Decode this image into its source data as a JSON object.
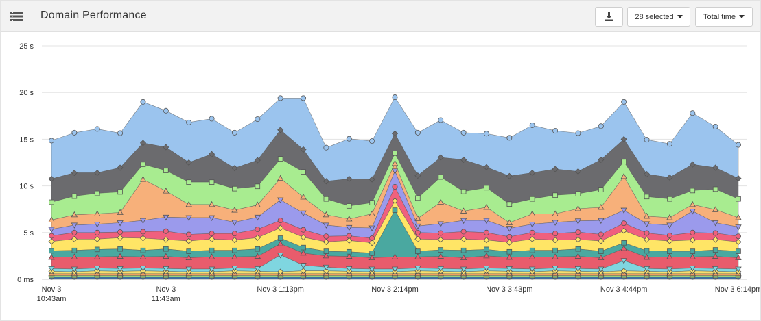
{
  "header": {
    "title": "Domain Performance",
    "menu_icon": "list-icon",
    "download_icon": "download-icon",
    "selected_label": "28 selected",
    "metric_label": "Total time"
  },
  "chart_data": {
    "type": "area",
    "stacked": true,
    "grid": true,
    "legend": "none",
    "ylim": [
      0,
      25
    ],
    "y_ticks": [
      {
        "value": 0,
        "label": "0 ms"
      },
      {
        "value": 5,
        "label": "5 s"
      },
      {
        "value": 10,
        "label": "10 s"
      },
      {
        "value": 15,
        "label": "15 s"
      },
      {
        "value": 20,
        "label": "20 s"
      },
      {
        "value": 25,
        "label": "25 s"
      }
    ],
    "x_ticks": [
      {
        "index": 0,
        "lines": [
          "Nov 3",
          "10:43am"
        ]
      },
      {
        "index": 5,
        "lines": [
          "Nov 3",
          "11:43am"
        ]
      },
      {
        "index": 10,
        "lines": [
          "Nov 3 1:13pm"
        ]
      },
      {
        "index": 15,
        "lines": [
          "Nov 3 2:14pm"
        ]
      },
      {
        "index": 20,
        "lines": [
          "Nov 3 3:43pm"
        ]
      },
      {
        "index": 25,
        "lines": [
          "Nov 3 4:44pm"
        ]
      },
      {
        "index": 30,
        "lines": [
          "Nov 3 6:14pm"
        ]
      }
    ],
    "point_count": 31,
    "bands": [
      {
        "color": "#3d6fa0",
        "marker": "circle",
        "values": [
          0.25,
          0.25,
          0.25,
          0.25,
          0.25,
          0.25,
          0.25,
          0.25,
          0.25,
          0.25,
          0.25,
          0.25,
          0.25,
          0.25,
          0.25,
          0.25,
          0.25,
          0.25,
          0.25,
          0.25,
          0.25,
          0.25,
          0.25,
          0.25,
          0.25,
          0.25,
          0.25,
          0.25,
          0.25,
          0.25,
          0.25
        ]
      },
      {
        "color": "#9ad47c",
        "marker": "square",
        "values": [
          0.15,
          0.15,
          0.15,
          0.15,
          0.15,
          0.15,
          0.15,
          0.15,
          0.15,
          0.15,
          0.15,
          0.15,
          0.15,
          0.15,
          0.15,
          0.15,
          0.15,
          0.15,
          0.15,
          0.15,
          0.15,
          0.15,
          0.15,
          0.15,
          0.15,
          0.15,
          0.15,
          0.15,
          0.15,
          0.15,
          0.15
        ]
      },
      {
        "color": "#f0a060",
        "marker": "triangle",
        "values": [
          0.2,
          0.2,
          0.2,
          0.2,
          0.2,
          0.2,
          0.2,
          0.2,
          0.2,
          0.2,
          0.2,
          0.2,
          0.2,
          0.2,
          0.2,
          0.2,
          0.2,
          0.2,
          0.2,
          0.2,
          0.2,
          0.2,
          0.2,
          0.2,
          0.2,
          0.2,
          0.2,
          0.2,
          0.2,
          0.2,
          0.2
        ]
      },
      {
        "color": "#f5e06e",
        "marker": "diamond",
        "values": [
          0.25,
          0.2,
          0.3,
          0.25,
          0.3,
          0.25,
          0.2,
          0.2,
          0.3,
          0.25,
          0.2,
          0.3,
          0.3,
          0.25,
          0.2,
          0.2,
          0.3,
          0.25,
          0.2,
          0.3,
          0.25,
          0.2,
          0.3,
          0.25,
          0.2,
          0.3,
          0.25,
          0.2,
          0.3,
          0.25,
          0.2
        ]
      },
      {
        "color": "#7fd6e0",
        "marker": "triangle-down",
        "values": [
          0.3,
          0.3,
          0.3,
          0.3,
          0.3,
          0.3,
          0.3,
          0.3,
          0.3,
          0.3,
          1.8,
          0.6,
          0.4,
          0.3,
          0.3,
          0.3,
          0.3,
          0.3,
          0.3,
          0.3,
          0.3,
          0.3,
          0.3,
          0.3,
          0.3,
          1.1,
          0.3,
          0.3,
          0.3,
          0.3,
          0.3
        ]
      },
      {
        "color": "#e85c6c",
        "marker": "triangle",
        "values": [
          1.2,
          1.3,
          1.2,
          1.3,
          1.2,
          1.3,
          1.2,
          1.3,
          1.2,
          1.3,
          1.2,
          1.3,
          1.2,
          1.3,
          1.2,
          1.3,
          1.2,
          1.3,
          1.2,
          1.3,
          1.2,
          1.3,
          1.2,
          1.3,
          1.2,
          1.3,
          1.2,
          1.3,
          1.2,
          1.3,
          1.2
        ]
      },
      {
        "color": "#4aa8a0",
        "marker": "square",
        "values": [
          0.7,
          0.7,
          0.8,
          0.8,
          0.7,
          0.8,
          0.7,
          0.7,
          0.7,
          0.8,
          0.6,
          0.6,
          0.5,
          0.5,
          0.5,
          5.0,
          0.6,
          0.7,
          0.8,
          0.7,
          0.6,
          0.7,
          0.7,
          0.8,
          0.7,
          0.6,
          0.7,
          0.6,
          0.6,
          0.7,
          0.7
        ]
      },
      {
        "color": "#ffe566",
        "marker": "diamond",
        "values": [
          1.0,
          1.2,
          1.1,
          1.2,
          1.3,
          1.0,
          1.1,
          1.2,
          1.1,
          1.2,
          1.1,
          1.1,
          1.0,
          1.2,
          1.1,
          1.0,
          1.3,
          1.1,
          1.2,
          1.0,
          1.0,
          1.2,
          1.1,
          1.0,
          1.1,
          1.3,
          1.2,
          1.1,
          1.2,
          1.1,
          1.0
        ]
      },
      {
        "color": "#f0607e",
        "marker": "circle",
        "values": [
          0.6,
          0.7,
          0.7,
          0.6,
          0.7,
          0.9,
          0.7,
          0.6,
          0.7,
          0.9,
          0.8,
          0.8,
          0.6,
          0.5,
          0.5,
          1.5,
          0.7,
          0.7,
          0.8,
          0.8,
          0.6,
          0.7,
          0.7,
          0.8,
          0.7,
          0.8,
          0.7,
          0.6,
          0.8,
          0.7,
          0.6
        ]
      },
      {
        "color": "#9b9aec",
        "marker": "triangle-down",
        "values": [
          0.7,
          0.8,
          0.9,
          1.0,
          1.2,
          1.5,
          1.8,
          1.7,
          1.2,
          1.3,
          2.2,
          1.8,
          1.2,
          0.9,
          1.1,
          1.7,
          0.7,
          1.0,
          1.2,
          1.3,
          0.9,
          0.9,
          1.2,
          1.2,
          1.5,
          1.4,
          1.0,
          1.1,
          2.3,
          1.1,
          1.0
        ]
      },
      {
        "color": "#f7b07a",
        "marker": "triangle",
        "values": [
          1.0,
          1.1,
          1.1,
          1.1,
          4.4,
          2.8,
          1.4,
          1.4,
          1.3,
          1.3,
          2.3,
          1.7,
          1.1,
          0.9,
          1.5,
          0.8,
          0.8,
          2.3,
          1.0,
          1.4,
          0.6,
          1.1,
          0.9,
          1.3,
          1.4,
          3.6,
          0.8,
          0.8,
          0.7,
          1.4,
          1.0
        ]
      },
      {
        "color": "#a8ec90",
        "marker": "square",
        "values": [
          1.9,
          2.0,
          2.2,
          2.2,
          1.6,
          2.2,
          2.4,
          2.4,
          2.3,
          2.0,
          2.1,
          2.7,
          1.7,
          1.4,
          1.2,
          1.1,
          2.2,
          2.7,
          2.1,
          2.1,
          2.0,
          1.6,
          2.0,
          1.6,
          1.9,
          1.6,
          2.1,
          2.0,
          1.5,
          2.2,
          2.0
        ]
      },
      {
        "color": "#6b6b6e",
        "marker": "diamond",
        "values": [
          2.5,
          2.5,
          2.2,
          2.6,
          2.3,
          2.5,
          2.1,
          3.0,
          2.2,
          2.8,
          3.1,
          2.4,
          1.9,
          2.9,
          2.5,
          2.1,
          2.4,
          2.1,
          3.4,
          2.2,
          3.0,
          2.8,
          2.8,
          2.4,
          3.2,
          2.4,
          2.4,
          2.3,
          2.8,
          2.3,
          2.2
        ]
      },
      {
        "color": "#9bc4ee",
        "marker": "circle",
        "values": [
          4.1,
          4.3,
          4.7,
          3.7,
          4.4,
          3.9,
          4.3,
          3.8,
          3.8,
          4.4,
          3.4,
          5.5,
          3.6,
          4.3,
          4.1,
          3.9,
          4.6,
          4.0,
          2.9,
          3.6,
          4.1,
          5.1,
          4.1,
          4.1,
          3.6,
          4.0,
          3.7,
          3.6,
          5.5,
          4.4,
          3.6
        ]
      }
    ]
  }
}
